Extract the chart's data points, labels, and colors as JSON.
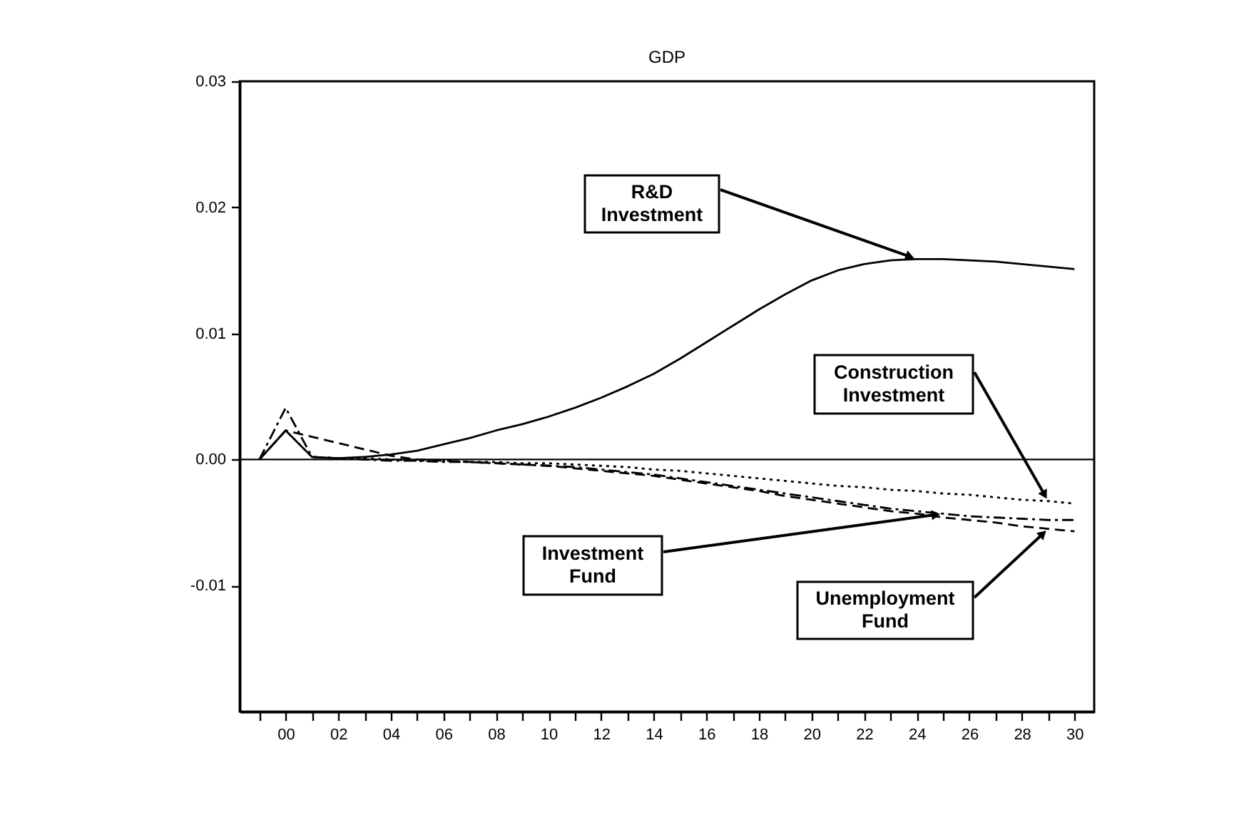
{
  "chart_data": {
    "type": "line",
    "title": "GDP",
    "x": [
      -1,
      0,
      1,
      2,
      3,
      4,
      5,
      6,
      7,
      8,
      9,
      10,
      11,
      12,
      13,
      14,
      15,
      16,
      17,
      18,
      19,
      20,
      21,
      22,
      23,
      24,
      25,
      26,
      27,
      28,
      29,
      30
    ],
    "xlim": [
      -1.75,
      30.75
    ],
    "xticks": [
      {
        "value": -1,
        "label": null
      },
      {
        "value": 0,
        "label": "00"
      },
      {
        "value": 1,
        "label": null
      },
      {
        "value": 2,
        "label": "02"
      },
      {
        "value": 3,
        "label": null
      },
      {
        "value": 4,
        "label": "04"
      },
      {
        "value": 5,
        "label": null
      },
      {
        "value": 6,
        "label": "06"
      },
      {
        "value": 7,
        "label": null
      },
      {
        "value": 8,
        "label": "08"
      },
      {
        "value": 9,
        "label": null
      },
      {
        "value": 10,
        "label": "10"
      },
      {
        "value": 11,
        "label": null
      },
      {
        "value": 12,
        "label": "12"
      },
      {
        "value": 13,
        "label": null
      },
      {
        "value": 14,
        "label": "14"
      },
      {
        "value": 15,
        "label": null
      },
      {
        "value": 16,
        "label": "16"
      },
      {
        "value": 17,
        "label": null
      },
      {
        "value": 18,
        "label": "18"
      },
      {
        "value": 19,
        "label": null
      },
      {
        "value": 20,
        "label": "20"
      },
      {
        "value": 21,
        "label": null
      },
      {
        "value": 22,
        "label": "22"
      },
      {
        "value": 23,
        "label": null
      },
      {
        "value": 24,
        "label": "24"
      },
      {
        "value": 25,
        "label": null
      },
      {
        "value": 26,
        "label": "26"
      },
      {
        "value": 27,
        "label": null
      },
      {
        "value": 28,
        "label": "28"
      },
      {
        "value": 29,
        "label": null
      },
      {
        "value": 30,
        "label": "30"
      }
    ],
    "ylim": [
      -0.02,
      0.03
    ],
    "yticks": [
      -0.01,
      {
        "value": 0,
        "label": "0.00"
      },
      0.01,
      0.02,
      0.03
    ],
    "ref_lines": [
      {
        "axis": "y",
        "value": 0,
        "color": "#000000",
        "line_style": "solid"
      }
    ],
    "annotations": [
      {
        "text": "R&D Investment",
        "x": 24,
        "y": 0.0159
      },
      {
        "text": "Construction Investment",
        "x": 29,
        "y": -0.0033
      },
      {
        "text": "Investment Fund",
        "x": 25,
        "y": -0.0043
      },
      {
        "text": "Unemployment Fund",
        "x": 29,
        "y": -0.0055
      }
    ],
    "series": [
      {
        "color": "#000000",
        "line_style": "solid",
        "values": [
          0,
          0.0023,
          0.0002,
          0.0001,
          0.0002,
          0.0004,
          0.0007,
          0.0012,
          0.0017,
          0.0023,
          0.0028,
          0.0034,
          0.0041,
          0.0049,
          0.0058,
          0.0068,
          0.008,
          0.0093,
          0.0106,
          0.0119,
          0.0131,
          0.0142,
          0.015,
          0.0155,
          0.0158,
          0.0159,
          0.0159,
          0.0158,
          0.0157,
          0.0155,
          0.0153,
          0.0151
        ]
      },
      {
        "color": "#000000",
        "line_style": "dotted",
        "values": [
          0,
          0.0023,
          0.0002,
          0.0001,
          0.0001,
          0,
          -0.0001,
          -0.0001,
          -0.0002,
          -0.0002,
          -0.0003,
          -0.0003,
          -0.0004,
          -0.0005,
          -0.0006,
          -0.0008,
          -0.0009,
          -0.0011,
          -0.0013,
          -0.0015,
          -0.0017,
          -0.0019,
          -0.0021,
          -0.0022,
          -0.0024,
          -0.0025,
          -0.0027,
          -0.0028,
          -0.003,
          -0.0032,
          -0.0033,
          -0.0035
        ]
      },
      {
        "color": "#000000",
        "line_style": "dashdot",
        "values": [
          0,
          0.0041,
          0.0002,
          0.0001,
          0,
          -0.0001,
          -0.0001,
          -0.0002,
          -0.0002,
          -0.0003,
          -0.0004,
          -0.0005,
          -0.0006,
          -0.0008,
          -0.001,
          -0.0012,
          -0.0015,
          -0.0018,
          -0.0021,
          -0.0024,
          -0.0027,
          -0.003,
          -0.0033,
          -0.0036,
          -0.0039,
          -0.0041,
          -0.0043,
          -0.0045,
          -0.0046,
          -0.0047,
          -0.0048,
          -0.0048
        ]
      },
      {
        "color": "#000000",
        "line_style": "dashed",
        "values": [
          0,
          0.0023,
          0.0018,
          0.0013,
          0.0008,
          0.0003,
          0,
          -0.0001,
          -0.0002,
          -0.0003,
          -0.0004,
          -0.0005,
          -0.0007,
          -0.0009,
          -0.0011,
          -0.0013,
          -0.0016,
          -0.0019,
          -0.0022,
          -0.0025,
          -0.0029,
          -0.0032,
          -0.0035,
          -0.0038,
          -0.0041,
          -0.0043,
          -0.0046,
          -0.0048,
          -0.005,
          -0.0053,
          -0.0055,
          -0.0057
        ]
      }
    ]
  }
}
